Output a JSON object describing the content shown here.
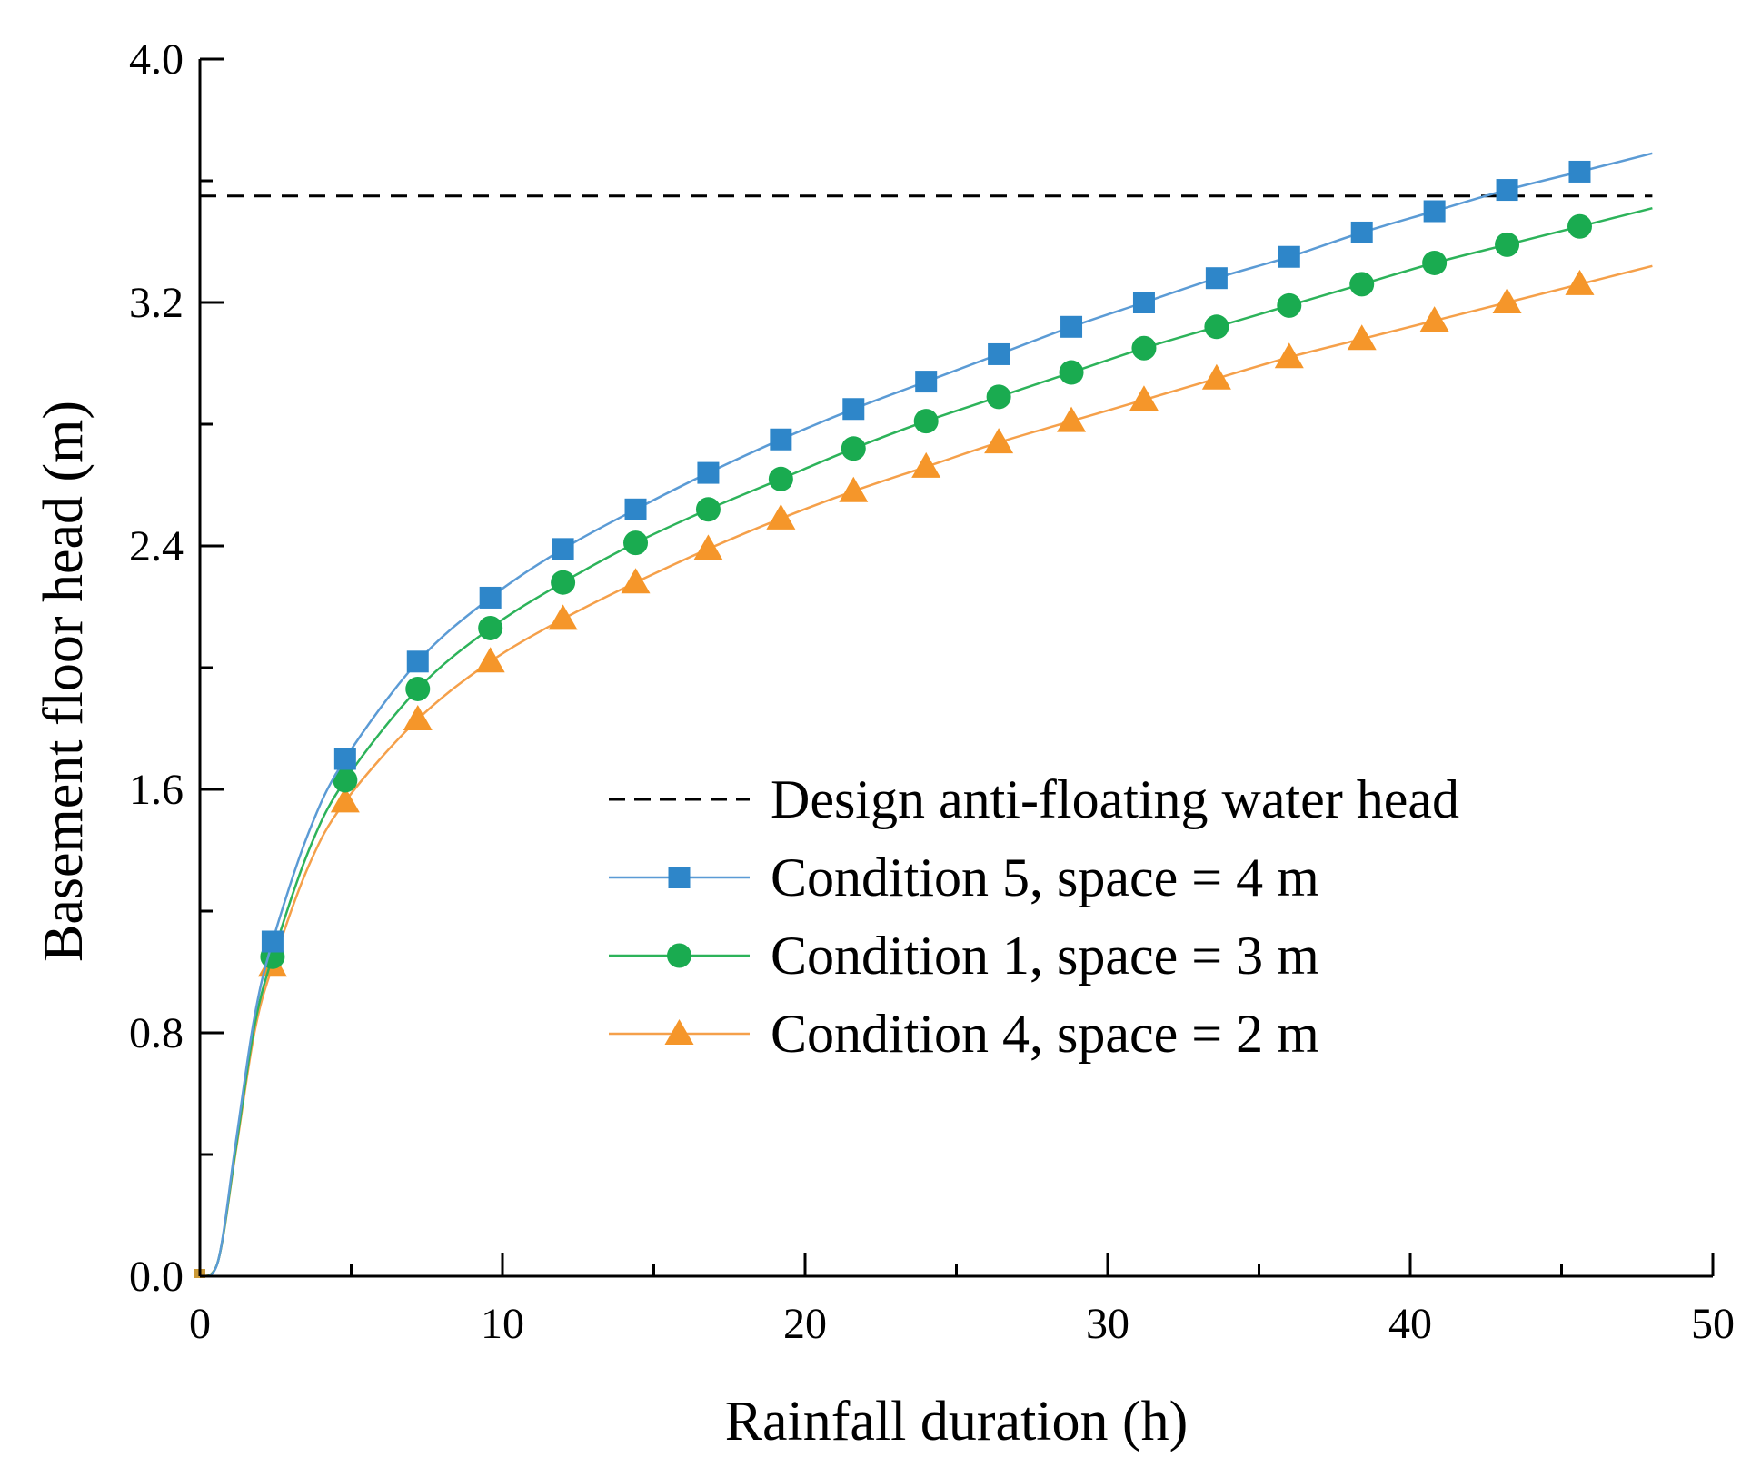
{
  "chart_data": {
    "type": "line",
    "title": "",
    "xlabel": "Rainfall duration (h)",
    "ylabel": "Basement floor head (m)",
    "xlim": [
      0,
      50
    ],
    "ylim": [
      0,
      4.0
    ],
    "xticks": [
      0,
      10,
      20,
      30,
      40,
      50
    ],
    "xtick_labels": [
      "0",
      "10",
      "20",
      "30",
      "40",
      "50"
    ],
    "yticks": [
      0,
      0.8,
      1.6,
      2.4,
      3.2,
      4.0
    ],
    "ytick_labels": [
      "0.0",
      "0.8",
      "1.6",
      "2.4",
      "3.2",
      "4.0"
    ],
    "grid": false,
    "legend_position": "center-right",
    "reference_line": {
      "name": "Design anti-floating water head",
      "y": 3.55,
      "x_range": [
        0,
        48
      ],
      "color": "#000000",
      "style": "dashed"
    },
    "series": [
      {
        "name": "Condition 5, space = 4 m",
        "color": "#2e86c9",
        "line_color": "#5b9bd5",
        "marker": "square",
        "curve": [
          [
            0,
            0
          ],
          [
            0.6,
            0.05
          ],
          [
            1.2,
            0.45
          ],
          [
            1.8,
            0.85
          ],
          [
            2.4,
            1.1
          ],
          [
            3.6,
            1.46
          ],
          [
            4.8,
            1.7
          ],
          [
            7.2,
            2.02
          ],
          [
            9.6,
            2.23
          ],
          [
            12,
            2.39
          ],
          [
            14.4,
            2.52
          ],
          [
            16.8,
            2.64
          ],
          [
            19.2,
            2.75
          ],
          [
            21.6,
            2.85
          ],
          [
            24,
            2.94
          ],
          [
            26.4,
            3.03
          ],
          [
            28.8,
            3.12
          ],
          [
            31.2,
            3.2
          ],
          [
            33.6,
            3.28
          ],
          [
            36,
            3.35
          ],
          [
            38.4,
            3.43
          ],
          [
            40.8,
            3.5
          ],
          [
            43.2,
            3.57
          ],
          [
            45.6,
            3.63
          ],
          [
            48,
            3.69
          ]
        ],
        "markers": [
          [
            2.4,
            1.1
          ],
          [
            4.8,
            1.7
          ],
          [
            7.2,
            2.02
          ],
          [
            9.6,
            2.23
          ],
          [
            12,
            2.39
          ],
          [
            14.4,
            2.52
          ],
          [
            16.8,
            2.64
          ],
          [
            19.2,
            2.75
          ],
          [
            21.6,
            2.85
          ],
          [
            24,
            2.94
          ],
          [
            26.4,
            3.03
          ],
          [
            28.8,
            3.12
          ],
          [
            31.2,
            3.2
          ],
          [
            33.6,
            3.28
          ],
          [
            36,
            3.35
          ],
          [
            38.4,
            3.43
          ],
          [
            40.8,
            3.5
          ],
          [
            43.2,
            3.57
          ],
          [
            45.6,
            3.63
          ]
        ]
      },
      {
        "name": "Condition 1, space = 3 m",
        "color": "#1aab50",
        "line_color": "#2db35a",
        "marker": "circle",
        "curve": [
          [
            0,
            0
          ],
          [
            0.6,
            0.05
          ],
          [
            1.2,
            0.43
          ],
          [
            1.8,
            0.82
          ],
          [
            2.4,
            1.05
          ],
          [
            3.6,
            1.4
          ],
          [
            4.8,
            1.63
          ],
          [
            7.2,
            1.93
          ],
          [
            9.6,
            2.13
          ],
          [
            12,
            2.28
          ],
          [
            14.4,
            2.41
          ],
          [
            16.8,
            2.52
          ],
          [
            19.2,
            2.62
          ],
          [
            21.6,
            2.72
          ],
          [
            24,
            2.81
          ],
          [
            26.4,
            2.89
          ],
          [
            28.8,
            2.97
          ],
          [
            31.2,
            3.05
          ],
          [
            33.6,
            3.12
          ],
          [
            36,
            3.19
          ],
          [
            38.4,
            3.26
          ],
          [
            40.8,
            3.33
          ],
          [
            43.2,
            3.39
          ],
          [
            45.6,
            3.45
          ],
          [
            48,
            3.51
          ]
        ],
        "markers": [
          [
            2.4,
            1.05
          ],
          [
            4.8,
            1.63
          ],
          [
            7.2,
            1.93
          ],
          [
            9.6,
            2.13
          ],
          [
            12,
            2.28
          ],
          [
            14.4,
            2.41
          ],
          [
            16.8,
            2.52
          ],
          [
            19.2,
            2.62
          ],
          [
            21.6,
            2.72
          ],
          [
            24,
            2.81
          ],
          [
            26.4,
            2.89
          ],
          [
            28.8,
            2.97
          ],
          [
            31.2,
            3.05
          ],
          [
            33.6,
            3.12
          ],
          [
            36,
            3.19
          ],
          [
            38.4,
            3.26
          ],
          [
            40.8,
            3.33
          ],
          [
            43.2,
            3.39
          ],
          [
            45.6,
            3.45
          ]
        ]
      },
      {
        "name": "Condition 4, space = 2 m",
        "color": "#f5962a",
        "line_color": "#f5a04a",
        "marker": "triangle",
        "curve": [
          [
            0,
            0
          ],
          [
            0.6,
            0.05
          ],
          [
            1.2,
            0.42
          ],
          [
            1.8,
            0.8
          ],
          [
            2.4,
            1.02
          ],
          [
            3.6,
            1.35
          ],
          [
            4.8,
            1.56
          ],
          [
            7.2,
            1.83
          ],
          [
            9.6,
            2.02
          ],
          [
            12,
            2.16
          ],
          [
            14.4,
            2.28
          ],
          [
            16.8,
            2.39
          ],
          [
            19.2,
            2.49
          ],
          [
            21.6,
            2.58
          ],
          [
            24,
            2.66
          ],
          [
            26.4,
            2.74
          ],
          [
            28.8,
            2.81
          ],
          [
            31.2,
            2.88
          ],
          [
            33.6,
            2.95
          ],
          [
            36,
            3.02
          ],
          [
            38.4,
            3.08
          ],
          [
            40.8,
            3.14
          ],
          [
            43.2,
            3.2
          ],
          [
            45.6,
            3.26
          ],
          [
            48,
            3.32
          ]
        ],
        "markers": [
          [
            2.4,
            1.02
          ],
          [
            4.8,
            1.56
          ],
          [
            7.2,
            1.83
          ],
          [
            9.6,
            2.02
          ],
          [
            12,
            2.16
          ],
          [
            14.4,
            2.28
          ],
          [
            16.8,
            2.39
          ],
          [
            19.2,
            2.49
          ],
          [
            21.6,
            2.58
          ],
          [
            24,
            2.66
          ],
          [
            26.4,
            2.74
          ],
          [
            28.8,
            2.81
          ],
          [
            31.2,
            2.88
          ],
          [
            33.6,
            2.95
          ],
          [
            36,
            3.02
          ],
          [
            38.4,
            3.08
          ],
          [
            40.8,
            3.14
          ],
          [
            43.2,
            3.2
          ],
          [
            45.6,
            3.26
          ]
        ]
      }
    ]
  }
}
